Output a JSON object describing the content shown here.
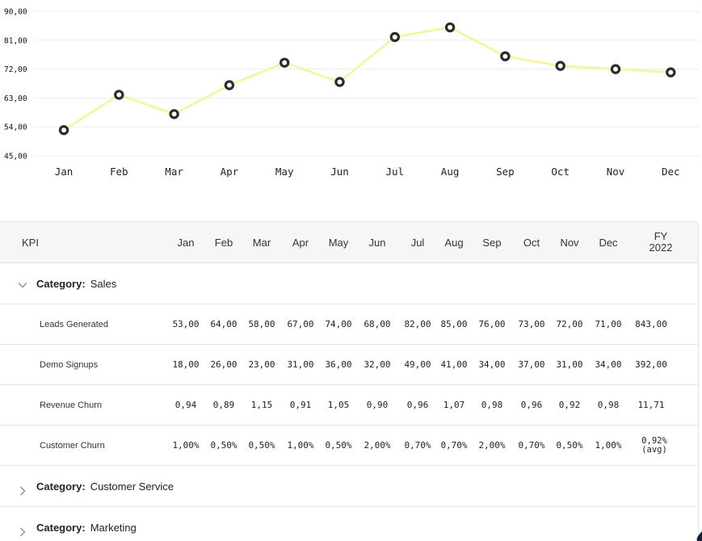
{
  "chart_data": {
    "type": "line",
    "categories": [
      "Jan",
      "Feb",
      "Mar",
      "Apr",
      "May",
      "Jun",
      "Jul",
      "Aug",
      "Sep",
      "Oct",
      "Nov",
      "Dec"
    ],
    "series": [
      {
        "values": [
          53,
          64,
          58,
          67,
          74,
          68,
          82,
          85,
          76,
          73,
          72,
          71
        ]
      }
    ],
    "y_ticks": [
      "90,00",
      "81,00",
      "72,00",
      "63,00",
      "54,00",
      "45,00"
    ],
    "ylim": [
      45,
      90
    ],
    "grid": true,
    "line_color": "#f4f5a8",
    "marker_color": "#2c2c2c"
  },
  "table": {
    "columns": [
      "KPI",
      "Jan",
      "Feb",
      "Mar",
      "Apr",
      "May",
      "Jun",
      "Jul",
      "Aug",
      "Sep",
      "Oct",
      "Nov",
      "Dec"
    ],
    "fy_header": {
      "line1": "FY",
      "line2": "2022"
    },
    "category_key": "Category:",
    "categories": [
      {
        "name": "Sales",
        "expanded": true,
        "toggle_icon": "chevron-down-icon",
        "rows": [
          {
            "name": "Leads Generated",
            "values": [
              "53,00",
              "64,00",
              "58,00",
              "67,00",
              "74,00",
              "68,00",
              "82,00",
              "85,00",
              "76,00",
              "73,00",
              "72,00",
              "71,00"
            ],
            "fy": "843,00"
          },
          {
            "name": "Demo Signups",
            "values": [
              "18,00",
              "26,00",
              "23,00",
              "31,00",
              "36,00",
              "32,00",
              "49,00",
              "41,00",
              "34,00",
              "37,00",
              "31,00",
              "34,00"
            ],
            "fy": "392,00"
          },
          {
            "name": "Revenue Churn",
            "values": [
              "0,94",
              "0,89",
              "1,15",
              "0,91",
              "1,05",
              "0,90",
              "0,96",
              "1,07",
              "0,98",
              "0,96",
              "0,92",
              "0,98"
            ],
            "fy": "11,71"
          },
          {
            "name": "Customer Churn",
            "values": [
              "1,00%",
              "0,50%",
              "0,50%",
              "1,00%",
              "0,50%",
              "2,00%",
              "0,70%",
              "0,70%",
              "2,00%",
              "0,70%",
              "0,50%",
              "1,00%"
            ],
            "fy": "0,92%",
            "fy_sub": "(avg)"
          }
        ]
      },
      {
        "name": "Customer Service",
        "expanded": false,
        "toggle_icon": "chevron-right-icon"
      },
      {
        "name": "Marketing",
        "expanded": false,
        "toggle_icon": "chevron-right-icon"
      }
    ]
  }
}
